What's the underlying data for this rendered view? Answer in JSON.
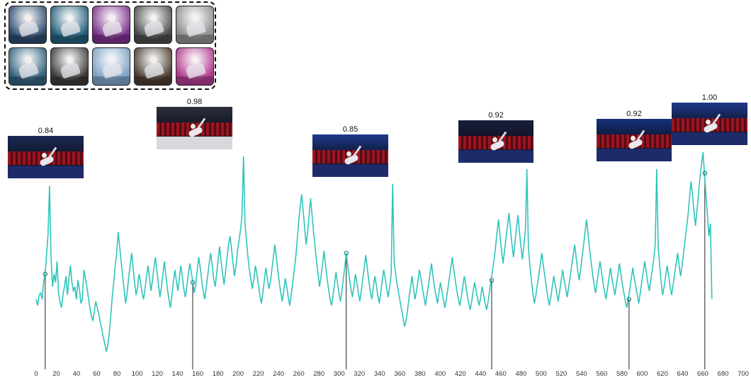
{
  "chart_data": {
    "type": "line",
    "xlim": [
      0,
      700
    ],
    "x_ticks": [
      0,
      20,
      40,
      60,
      80,
      100,
      120,
      140,
      160,
      180,
      200,
      220,
      240,
      260,
      280,
      300,
      320,
      340,
      360,
      380,
      400,
      420,
      440,
      460,
      480,
      500,
      520,
      540,
      560,
      580,
      600,
      620,
      640,
      660,
      680,
      700
    ],
    "line_color": "#2ec4bc",
    "marker_color": "#1a7f7a",
    "grid": false,
    "series": [
      {
        "values": [
          0.3,
          0.27,
          0.32,
          0.33,
          0.3,
          0.38,
          0.42,
          0.51,
          0.61,
          0.84,
          0.49,
          0.36,
          0.42,
          0.38,
          0.48,
          0.33,
          0.29,
          0.26,
          0.32,
          0.36,
          0.41,
          0.32,
          0.4,
          0.46,
          0.38,
          0.34,
          0.36,
          0.3,
          0.39,
          0.35,
          0.28,
          0.3,
          0.44,
          0.4,
          0.36,
          0.31,
          0.26,
          0.22,
          0.2,
          0.24,
          0.29,
          0.26,
          0.23,
          0.19,
          0.16,
          0.12,
          0.09,
          0.05,
          0.08,
          0.14,
          0.22,
          0.31,
          0.38,
          0.46,
          0.52,
          0.62,
          0.55,
          0.48,
          0.41,
          0.35,
          0.28,
          0.33,
          0.4,
          0.46,
          0.52,
          0.45,
          0.38,
          0.32,
          0.36,
          0.42,
          0.38,
          0.33,
          0.3,
          0.35,
          0.41,
          0.46,
          0.4,
          0.34,
          0.39,
          0.45,
          0.5,
          0.43,
          0.37,
          0.31,
          0.36,
          0.42,
          0.48,
          0.41,
          0.35,
          0.3,
          0.26,
          0.32,
          0.38,
          0.44,
          0.39,
          0.34,
          0.4,
          0.46,
          0.41,
          0.35,
          0.31,
          0.36,
          0.42,
          0.47,
          0.43,
          0.38,
          0.33,
          0.37,
          0.44,
          0.5,
          0.45,
          0.39,
          0.34,
          0.3,
          0.35,
          0.41,
          0.47,
          0.52,
          0.46,
          0.4,
          0.36,
          0.42,
          0.49,
          0.55,
          0.48,
          0.42,
          0.37,
          0.43,
          0.5,
          0.56,
          0.6,
          0.54,
          0.47,
          0.41,
          0.46,
          0.53,
          0.58,
          0.63,
          0.7,
          0.98,
          0.66,
          0.58,
          0.5,
          0.44,
          0.39,
          0.35,
          0.4,
          0.46,
          0.42,
          0.37,
          0.32,
          0.28,
          0.33,
          0.39,
          0.45,
          0.4,
          0.35,
          0.38,
          0.44,
          0.5,
          0.56,
          0.5,
          0.44,
          0.38,
          0.33,
          0.29,
          0.34,
          0.4,
          0.36,
          0.31,
          0.27,
          0.32,
          0.38,
          0.44,
          0.5,
          0.58,
          0.67,
          0.74,
          0.8,
          0.72,
          0.64,
          0.56,
          0.62,
          0.7,
          0.78,
          0.7,
          0.62,
          0.55,
          0.48,
          0.42,
          0.36,
          0.41,
          0.47,
          0.53,
          0.46,
          0.4,
          0.35,
          0.3,
          0.27,
          0.32,
          0.37,
          0.43,
          0.38,
          0.33,
          0.29,
          0.34,
          0.4,
          0.46,
          0.52,
          0.45,
          0.4,
          0.35,
          0.31,
          0.36,
          0.42,
          0.38,
          0.33,
          0.29,
          0.34,
          0.4,
          0.45,
          0.51,
          0.45,
          0.39,
          0.34,
          0.3,
          0.35,
          0.41,
          0.37,
          0.32,
          0.28,
          0.33,
          0.39,
          0.44,
          0.4,
          0.35,
          0.31,
          0.36,
          0.42,
          0.85,
          0.48,
          0.42,
          0.37,
          0.33,
          0.29,
          0.25,
          0.21,
          0.17,
          0.2,
          0.25,
          0.31,
          0.36,
          0.41,
          0.35,
          0.3,
          0.34,
          0.39,
          0.44,
          0.4,
          0.35,
          0.31,
          0.27,
          0.32,
          0.37,
          0.42,
          0.47,
          0.41,
          0.36,
          0.32,
          0.28,
          0.33,
          0.38,
          0.34,
          0.3,
          0.26,
          0.3,
          0.35,
          0.4,
          0.45,
          0.5,
          0.44,
          0.39,
          0.34,
          0.3,
          0.27,
          0.31,
          0.36,
          0.41,
          0.37,
          0.32,
          0.28,
          0.25,
          0.29,
          0.34,
          0.38,
          0.34,
          0.3,
          0.27,
          0.31,
          0.36,
          0.32,
          0.28,
          0.25,
          0.29,
          0.34,
          0.39,
          0.44,
          0.49,
          0.55,
          0.62,
          0.68,
          0.6,
          0.53,
          0.47,
          0.53,
          0.59,
          0.65,
          0.71,
          0.63,
          0.56,
          0.5,
          0.57,
          0.64,
          0.7,
          0.62,
          0.55,
          0.49,
          0.56,
          0.63,
          0.92,
          0.55,
          0.46,
          0.39,
          0.33,
          0.28,
          0.32,
          0.37,
          0.42,
          0.47,
          0.52,
          0.46,
          0.41,
          0.36,
          0.31,
          0.27,
          0.31,
          0.36,
          0.41,
          0.37,
          0.33,
          0.29,
          0.34,
          0.39,
          0.44,
          0.39,
          0.35,
          0.31,
          0.36,
          0.41,
          0.46,
          0.51,
          0.56,
          0.5,
          0.44,
          0.39,
          0.44,
          0.5,
          0.56,
          0.62,
          0.68,
          0.61,
          0.54,
          0.48,
          0.42,
          0.37,
          0.33,
          0.38,
          0.43,
          0.48,
          0.43,
          0.38,
          0.34,
          0.3,
          0.35,
          0.4,
          0.45,
          0.4,
          0.36,
          0.32,
          0.37,
          0.42,
          0.47,
          0.42,
          0.37,
          0.33,
          0.29,
          0.26,
          0.3,
          0.35,
          0.4,
          0.45,
          0.4,
          0.36,
          0.32,
          0.28,
          0.33,
          0.38,
          0.43,
          0.48,
          0.43,
          0.38,
          0.34,
          0.39,
          0.44,
          0.49,
          0.56,
          0.92,
          0.55,
          0.46,
          0.38,
          0.32,
          0.36,
          0.41,
          0.46,
          0.41,
          0.36,
          0.32,
          0.37,
          0.42,
          0.47,
          0.52,
          0.46,
          0.41,
          0.46,
          0.52,
          0.58,
          0.64,
          0.7,
          0.78,
          0.86,
          0.8,
          0.72,
          0.65,
          0.72,
          0.8,
          0.88,
          0.94,
          1.0,
          0.9,
          0.8,
          0.7,
          0.6,
          0.66,
          0.3
        ]
      }
    ],
    "highlights": [
      {
        "x": 9,
        "label": "0.84"
      },
      {
        "x": 155,
        "label": "0.98"
      },
      {
        "x": 307,
        "label": "0.85"
      },
      {
        "x": 451,
        "label": "0.92"
      },
      {
        "x": 587,
        "label": "0.92"
      },
      {
        "x": 662,
        "label": "1.00"
      }
    ]
  },
  "reference_thumbnails": {
    "backgrounds": [
      "#2b4a6e",
      "#1f5c78",
      "#7a2f8c",
      "#4a4a4a",
      "#8c8c8c",
      "#2f5f7a",
      "#3a3a3a",
      "#7aa0c4",
      "#4a3c30",
      "#b03a8c"
    ]
  },
  "frame_backgrounds": [
    "#1b2a55",
    "#2a2f3a",
    "#1d3b8c",
    "#1a1f3a",
    "#16307a",
    "#1e3a8c"
  ]
}
